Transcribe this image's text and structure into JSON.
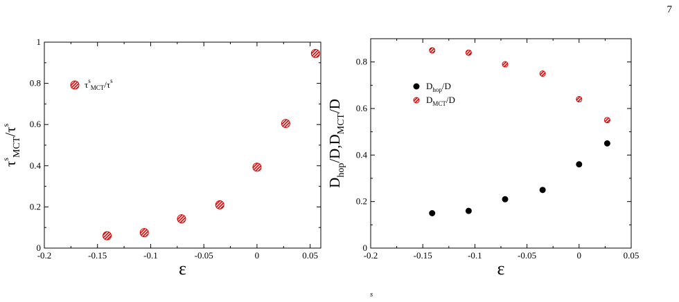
{
  "page_number": "7",
  "caption_fragment": "s",
  "chart_data": [
    {
      "type": "scatter",
      "title": "",
      "xlabel": "ε",
      "ylabel_parts": {
        "main": "τ",
        "sup": "s",
        "sub": "MCT",
        "slash": "/τ",
        "sup2": "s"
      },
      "xlim": [
        -0.2,
        0.06
      ],
      "ylim": [
        0,
        1
      ],
      "xticks": [
        -0.2,
        -0.15,
        -0.1,
        -0.05,
        0,
        0.05
      ],
      "xtick_labels": [
        "-0.2",
        "-0.15",
        "-0.1",
        "-0.05",
        "0",
        "0.05"
      ],
      "yticks": [
        0,
        0.2,
        0.4,
        0.6,
        0.8,
        1
      ],
      "ytick_labels": [
        "0",
        "0.2",
        "0.4",
        "0.6",
        "0.8",
        "1"
      ],
      "grid": false,
      "legend_position": "top-left",
      "series": [
        {
          "name": "τ^s_MCT/τ^s",
          "legend_parts": {
            "main": "τ",
            "sup": "s",
            "sub": "MCT",
            "slash": "/τ",
            "sup2": "s"
          },
          "marker": "hatched-circle",
          "color": "#d40000",
          "x": [
            -0.141,
            -0.106,
            -0.071,
            -0.035,
            0,
            0.027,
            0.055
          ],
          "y": [
            0.06,
            0.075,
            0.142,
            0.21,
            0.393,
            0.605,
            0.945
          ]
        }
      ]
    },
    {
      "type": "scatter",
      "title": "",
      "xlabel": "ε",
      "ylabel_parts": {
        "a": "D",
        "a_sub": "hop",
        "b": "/D,D",
        "b_sub": "MCT",
        "c": "/D"
      },
      "xlim": [
        -0.2,
        0.05
      ],
      "ylim": [
        0,
        0.9
      ],
      "xticks": [
        -0.2,
        -0.15,
        -0.1,
        -0.05,
        0,
        0.05
      ],
      "xtick_labels": [
        "-0.2",
        "-0.15",
        "-0.1",
        "-0.05",
        "0",
        "0.05"
      ],
      "yticks": [
        0,
        0.2,
        0.4,
        0.6,
        0.8
      ],
      "ytick_labels": [
        "0",
        "0.2",
        "0.4",
        "0.6",
        "0.8"
      ],
      "grid": false,
      "legend_position": "upper-left",
      "series": [
        {
          "name": "D_hop/D",
          "legend_parts": {
            "main": "D",
            "sub": "hop",
            "rest": "/D"
          },
          "marker": "filled-circle",
          "color": "#000000",
          "x": [
            -0.141,
            -0.106,
            -0.071,
            -0.035,
            0,
            0.027
          ],
          "y": [
            0.15,
            0.16,
            0.21,
            0.25,
            0.36,
            0.45
          ]
        },
        {
          "name": "D_MCT/D",
          "legend_parts": {
            "main": "D",
            "sub": "MCT",
            "rest": "/D"
          },
          "marker": "hatched-circle",
          "color": "#d40000",
          "x": [
            -0.141,
            -0.106,
            -0.071,
            -0.035,
            0,
            0.027
          ],
          "y": [
            0.85,
            0.84,
            0.79,
            0.75,
            0.64,
            0.55
          ]
        }
      ]
    }
  ]
}
